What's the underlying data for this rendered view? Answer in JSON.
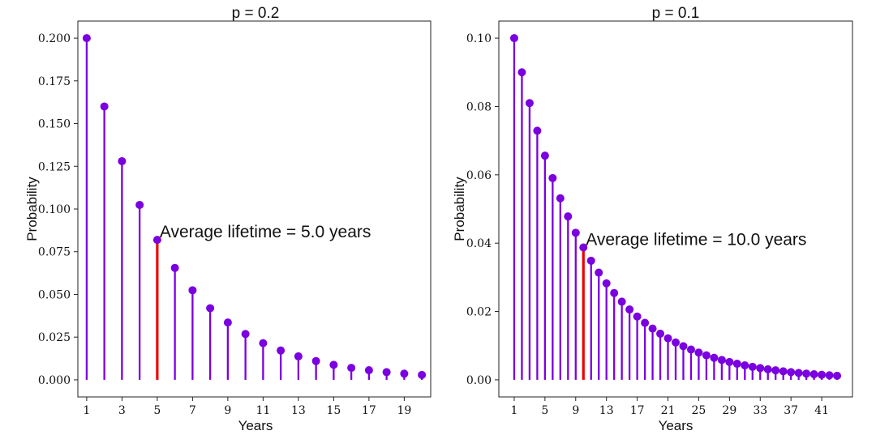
{
  "chart_data": [
    {
      "type": "stem",
      "title": "p = 0.2",
      "xlabel": "Years",
      "ylabel": "Probability",
      "p": 0.2,
      "x": [
        1,
        2,
        3,
        4,
        5,
        6,
        7,
        8,
        9,
        10,
        11,
        12,
        13,
        14,
        15,
        16,
        17,
        18,
        19,
        20
      ],
      "values": [
        0.2,
        0.16,
        0.128,
        0.1024,
        0.08192,
        0.065536,
        0.0524288,
        0.04194304,
        0.033554432,
        0.0268435456,
        0.02147483648,
        0.017179869184,
        0.0137438953472,
        0.01099511627776,
        0.008796093022208,
        0.0070368744177664,
        0.00562949953421312,
        0.004503599627370496,
        0.0036028797018963967,
        0.0028823037615171173
      ],
      "highlight_x": 5,
      "xlim": [
        0.5,
        20.5
      ],
      "ylim": [
        -0.01,
        0.21
      ],
      "xticks": [
        1,
        3,
        5,
        7,
        9,
        11,
        13,
        15,
        17,
        19
      ],
      "yticks": [
        0.0,
        0.025,
        0.05,
        0.075,
        0.1,
        0.125,
        0.15,
        0.175,
        0.2
      ],
      "ytick_labels": [
        "0.000",
        "0.025",
        "0.050",
        "0.075",
        "0.100",
        "0.125",
        "0.150",
        "0.175",
        "0.200"
      ],
      "annotation": "Average lifetime = 5.0 years",
      "stem_color": "#7b00e0",
      "highlight_color": "#ee0000"
    },
    {
      "type": "stem",
      "title": "p = 0.1",
      "xlabel": "Years",
      "ylabel": "Probability",
      "p": 0.1,
      "x": [
        1,
        2,
        3,
        4,
        5,
        6,
        7,
        8,
        9,
        10,
        11,
        12,
        13,
        14,
        15,
        16,
        17,
        18,
        19,
        20,
        21,
        22,
        23,
        24,
        25,
        26,
        27,
        28,
        29,
        30,
        31,
        32,
        33,
        34,
        35,
        36,
        37,
        38,
        39,
        40,
        41,
        42,
        43
      ],
      "values": [
        0.1,
        0.09,
        0.081,
        0.0729,
        0.06561,
        0.059049,
        0.0531441,
        0.04782969,
        0.043046721,
        0.0387420489,
        0.03486784401,
        0.031381059609,
        0.0282429536481,
        0.02541865828329,
        0.022876792454961,
        0.0205891132094649,
        0.01853020188851841,
        0.01667718169966657,
        0.015009463529699911,
        0.013508517176729922,
        0.01215766545905693,
        0.010941898913151235,
        0.009847709021836112,
        0.0088629381196525,
        0.00797664430768725,
        0.007178979876918526,
        0.006461081889226673,
        0.005814973700304006,
        0.005233476330273605,
        0.004710128697246245,
        0.00423911582752162,
        0.003815204244769458,
        0.0034336838202925126,
        0.003090315438263261,
        0.002781283894436935,
        0.0025031555049932416,
        0.0022528399544939175,
        0.0020275559590445255,
        0.001824800363140073,
        0.0016423203268260656,
        0.001478088294143459,
        0.0013302794647291132,
        0.001197251518256202
      ],
      "highlight_x": 10,
      "xlim": [
        -1,
        45
      ],
      "ylim": [
        -0.005,
        0.105
      ],
      "xticks": [
        1,
        5,
        9,
        13,
        17,
        21,
        25,
        29,
        33,
        37,
        41
      ],
      "yticks": [
        0.0,
        0.02,
        0.04,
        0.06,
        0.08,
        0.1
      ],
      "ytick_labels": [
        "0.00",
        "0.02",
        "0.04",
        "0.06",
        "0.08",
        "0.10"
      ],
      "annotation": "Average lifetime = 10.0 years",
      "stem_color": "#7b00e0",
      "highlight_color": "#ee0000"
    }
  ]
}
